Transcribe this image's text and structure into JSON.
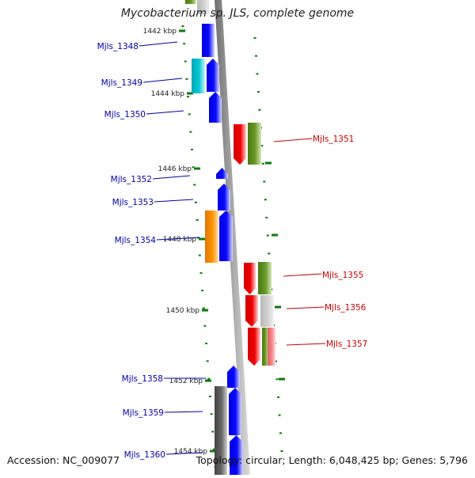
{
  "title": "Mycobacterium sp. JLS, complete genome",
  "accession": "Accession: NC_009077",
  "summary": "Topology: circular; Length: 6,048,425 bp; Genes: 5,796",
  "colors": {
    "blue": "#0000ee",
    "cyan": "#00bcc8",
    "orange": "#f08c00",
    "red": "#e00000",
    "olive": "#5a8a1a",
    "gray": "#cccccc",
    "darkgray": "#555555",
    "pink": "#f08080",
    "tick": "#0a7a0a",
    "backbone": "#8a8a8a"
  },
  "kbp_labels": [
    "1442 kbp",
    "1444 kbp",
    "1446 kbp",
    "1448 kbp",
    "1450 kbp",
    "1452 kbp",
    "1454 kbp"
  ],
  "gene_labels": [
    {
      "text": "Mjls_1348",
      "side": "left",
      "color": "#0000aa"
    },
    {
      "text": "Mjls_1349",
      "side": "left",
      "color": "#0000aa"
    },
    {
      "text": "Mjls_1350",
      "side": "left",
      "color": "#0000aa"
    },
    {
      "text": "Mjls_1351",
      "side": "right",
      "color": "#cc0000"
    },
    {
      "text": "Mjls_1352",
      "side": "left",
      "color": "#0000aa"
    },
    {
      "text": "Mjls_1353",
      "side": "left",
      "color": "#0000aa"
    },
    {
      "text": "Mjls_1354",
      "side": "left",
      "color": "#0000aa"
    },
    {
      "text": "Mjls_1355",
      "side": "right",
      "color": "#cc0000"
    },
    {
      "text": "Mjls_1356",
      "side": "right",
      "color": "#cc0000"
    },
    {
      "text": "Mjls_1357",
      "side": "right",
      "color": "#cc0000"
    },
    {
      "text": "Mjls_1358",
      "side": "left",
      "color": "#0000aa"
    },
    {
      "text": "Mjls_1359",
      "side": "left",
      "color": "#0000aa"
    },
    {
      "text": "Mjls_1360",
      "side": "left",
      "color": "#0000aa"
    }
  ]
}
